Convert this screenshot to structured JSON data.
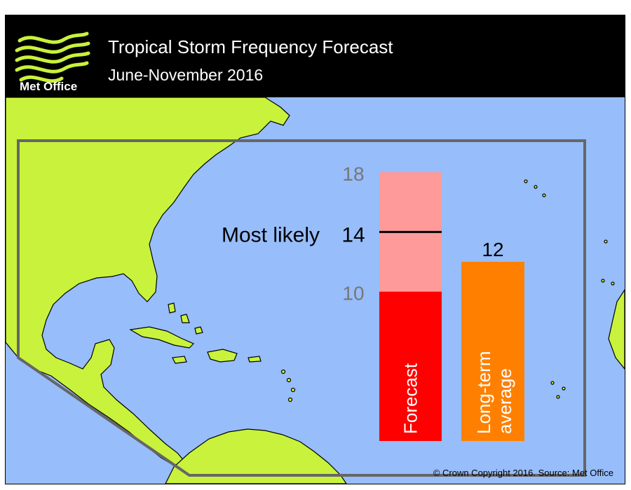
{
  "header": {
    "title": "Tropical Storm Frequency Forecast",
    "subtitle": "June-November 2016",
    "logo_text": "Met Office"
  },
  "copyright": "© Crown Copyright 2016. Source: Met Office",
  "colors": {
    "ocean": "#97bdfa",
    "land": "#c9f23c",
    "forecast_low": "#ff0000",
    "forecast_range": "#ff9a9a",
    "average": "#ff8000",
    "region_outline": "#666666",
    "range_label": "#777777"
  },
  "chart_data": {
    "type": "bar",
    "categories": [
      "Forecast",
      "Long-term\naverage"
    ],
    "forecast": {
      "label": "Forecast",
      "low": 10,
      "high": 18,
      "most_likely": 14
    },
    "average": {
      "label_lines": [
        "Long-term",
        "average"
      ],
      "value": 12
    },
    "most_likely_label": "Most likely",
    "range_labels": {
      "high": "18",
      "low": "10",
      "most_likely": "14",
      "average": "12"
    },
    "ylim": [
      0,
      18
    ]
  }
}
